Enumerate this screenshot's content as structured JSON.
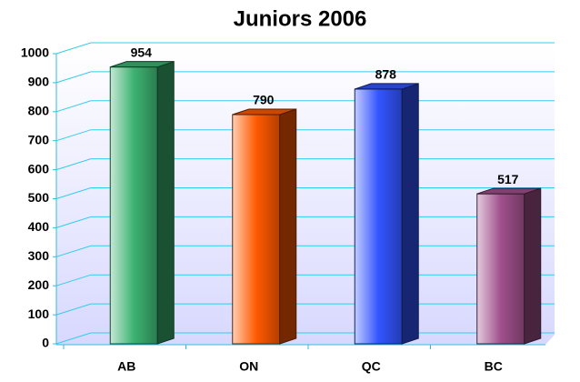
{
  "chart_data": {
    "type": "bar3d",
    "title": "Juniors 2006",
    "categories": [
      "AB",
      "ON",
      "QC",
      "BC"
    ],
    "values": [
      954,
      790,
      878,
      517
    ],
    "colors": [
      "#3cb371",
      "#ff5a00",
      "#3355ff",
      "#a0508c"
    ],
    "ylim": [
      0,
      1000
    ],
    "yticks": [
      0,
      100,
      200,
      300,
      400,
      500,
      600,
      700,
      800,
      900,
      1000
    ],
    "grid": true
  }
}
